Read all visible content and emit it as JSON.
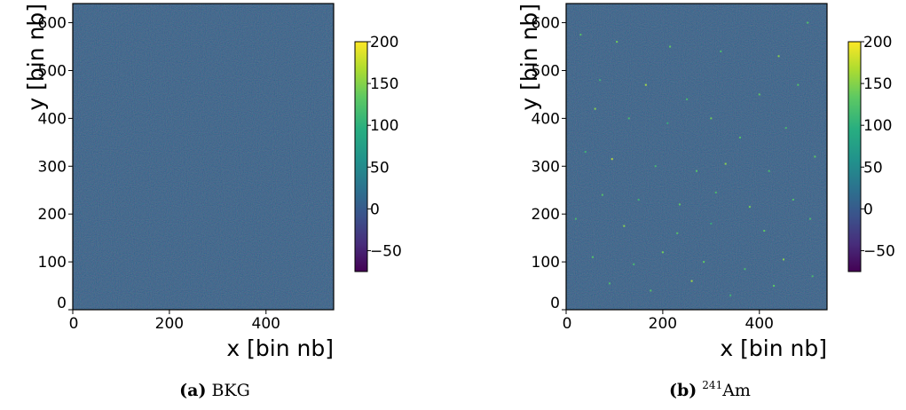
{
  "colors": {
    "viridis": [
      "#440154",
      "#3b528b",
      "#21918c",
      "#5ec962",
      "#fde725"
    ],
    "background_field": "#3a5f8f"
  },
  "chart_data": [
    {
      "type": "heatmap",
      "title": "",
      "xlabel": "x [bin nb]",
      "ylabel": "y [bin nb]",
      "xlim": [
        0,
        540
      ],
      "ylim": [
        0,
        640
      ],
      "xticks": [
        0,
        200,
        400
      ],
      "xtick_labels": [
        "0",
        "200",
        "400"
      ],
      "yticks": [
        0,
        100,
        200,
        300,
        400,
        500,
        600
      ],
      "ytick_labels": [
        "0",
        "100",
        "200",
        "300",
        "400",
        "500",
        "600"
      ],
      "colorbar": {
        "range": [
          -75,
          200
        ],
        "ticks": [
          200,
          150,
          100,
          50,
          0,
          -50
        ],
        "tick_labels": [
          "200",
          "150",
          "100",
          "50",
          "0",
          "−50"
        ],
        "colormap": "viridis"
      },
      "caption": {
        "label": "(a)",
        "text": "BKG"
      },
      "hot_pixels": []
    },
    {
      "type": "heatmap",
      "title": "",
      "xlabel": "x [bin nb]",
      "ylabel": "y [bin nb]",
      "xlim": [
        0,
        540
      ],
      "ylim": [
        0,
        640
      ],
      "xticks": [
        0,
        200,
        400
      ],
      "xtick_labels": [
        "0",
        "200",
        "400"
      ],
      "yticks": [
        0,
        100,
        200,
        300,
        400,
        500,
        600
      ],
      "ytick_labels": [
        "0",
        "100",
        "200",
        "300",
        "400",
        "500",
        "600"
      ],
      "colorbar": {
        "range": [
          -75,
          200
        ],
        "ticks": [
          200,
          150,
          100,
          50,
          0,
          -50
        ],
        "tick_labels": [
          "200",
          "150",
          "100",
          "50",
          "0",
          "−50"
        ],
        "colormap": "viridis"
      },
      "caption": {
        "label": "(b)",
        "sup": "241",
        "text": "Am"
      },
      "hot_pixels": [
        {
          "x": 30,
          "y": 575,
          "v": 120
        },
        {
          "x": 105,
          "y": 560,
          "v": 140
        },
        {
          "x": 215,
          "y": 550,
          "v": 130
        },
        {
          "x": 320,
          "y": 540,
          "v": 110
        },
        {
          "x": 440,
          "y": 530,
          "v": 150
        },
        {
          "x": 500,
          "y": 600,
          "v": 120
        },
        {
          "x": 70,
          "y": 480,
          "v": 100
        },
        {
          "x": 165,
          "y": 470,
          "v": 160
        },
        {
          "x": 250,
          "y": 440,
          "v": 110
        },
        {
          "x": 400,
          "y": 450,
          "v": 130
        },
        {
          "x": 480,
          "y": 470,
          "v": 120
        },
        {
          "x": 60,
          "y": 420,
          "v": 150
        },
        {
          "x": 130,
          "y": 400,
          "v": 110
        },
        {
          "x": 210,
          "y": 390,
          "v": 90
        },
        {
          "x": 300,
          "y": 400,
          "v": 140
        },
        {
          "x": 360,
          "y": 360,
          "v": 120
        },
        {
          "x": 455,
          "y": 380,
          "v": 110
        },
        {
          "x": 40,
          "y": 330,
          "v": 100
        },
        {
          "x": 95,
          "y": 315,
          "v": 170
        },
        {
          "x": 185,
          "y": 300,
          "v": 110
        },
        {
          "x": 270,
          "y": 290,
          "v": 120
        },
        {
          "x": 330,
          "y": 305,
          "v": 150
        },
        {
          "x": 420,
          "y": 290,
          "v": 110
        },
        {
          "x": 515,
          "y": 320,
          "v": 130
        },
        {
          "x": 75,
          "y": 240,
          "v": 120
        },
        {
          "x": 150,
          "y": 230,
          "v": 100
        },
        {
          "x": 235,
          "y": 220,
          "v": 130
        },
        {
          "x": 310,
          "y": 245,
          "v": 110
        },
        {
          "x": 380,
          "y": 215,
          "v": 140
        },
        {
          "x": 470,
          "y": 230,
          "v": 120
        },
        {
          "x": 20,
          "y": 190,
          "v": 110
        },
        {
          "x": 120,
          "y": 175,
          "v": 150
        },
        {
          "x": 230,
          "y": 160,
          "v": 120
        },
        {
          "x": 300,
          "y": 180,
          "v": 90
        },
        {
          "x": 410,
          "y": 165,
          "v": 130
        },
        {
          "x": 505,
          "y": 190,
          "v": 110
        },
        {
          "x": 55,
          "y": 110,
          "v": 120
        },
        {
          "x": 140,
          "y": 95,
          "v": 110
        },
        {
          "x": 200,
          "y": 120,
          "v": 140
        },
        {
          "x": 285,
          "y": 100,
          "v": 130
        },
        {
          "x": 370,
          "y": 85,
          "v": 110
        },
        {
          "x": 450,
          "y": 105,
          "v": 150
        },
        {
          "x": 90,
          "y": 55,
          "v": 110
        },
        {
          "x": 175,
          "y": 40,
          "v": 120
        },
        {
          "x": 260,
          "y": 60,
          "v": 160
        },
        {
          "x": 340,
          "y": 30,
          "v": 100
        },
        {
          "x": 430,
          "y": 50,
          "v": 130
        },
        {
          "x": 510,
          "y": 70,
          "v": 110
        }
      ]
    }
  ]
}
